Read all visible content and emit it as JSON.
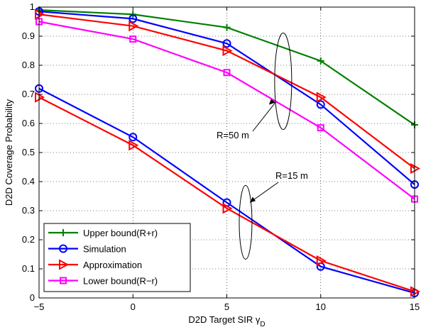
{
  "chart_data": {
    "type": "line",
    "title": "",
    "xlabel_main": "D2D Target SIR γ",
    "xlabel_sub": "D",
    "ylabel": "D2D Coverage Probability",
    "xlim": [
      -5,
      15
    ],
    "ylim": [
      0,
      1
    ],
    "grid": true,
    "legend_position": "bottom-left",
    "x_ticks": [
      "-5",
      "0",
      "5",
      "10",
      "15"
    ],
    "y_ticks": [
      "0",
      "0.1",
      "0.2",
      "0.3",
      "0.4",
      "0.5",
      "0.6",
      "0.7",
      "0.8",
      "0.9",
      "1"
    ],
    "x": [
      -5,
      0,
      5,
      10,
      15
    ],
    "series": [
      {
        "name": "Upper bound(R+r)",
        "color": "#008000",
        "marker": "plus",
        "group": "R=50 m",
        "values": [
          0.99,
          0.975,
          0.93,
          0.815,
          0.595
        ]
      },
      {
        "name": "Simulation",
        "color": "#0000ff",
        "marker": "circle",
        "group": "R=50 m",
        "values": [
          0.985,
          0.96,
          0.875,
          0.665,
          0.39
        ]
      },
      {
        "name": "Approximation",
        "color": "#ff0000",
        "marker": "triangle-right",
        "group": "R=50 m",
        "values": [
          0.975,
          0.935,
          0.85,
          0.69,
          0.445
        ]
      },
      {
        "name": "Lower bound(R−r)",
        "color": "#ff00ff",
        "marker": "square",
        "group": "R=50 m",
        "values": [
          0.95,
          0.89,
          0.775,
          0.585,
          0.34
        ]
      },
      {
        "name": "Simulation",
        "color": "#0000ff",
        "marker": "circle",
        "group": "R=15 m",
        "values": [
          0.72,
          0.553,
          0.328,
          0.108,
          0.017
        ]
      },
      {
        "name": "Approximation",
        "color": "#ff0000",
        "marker": "triangle-right",
        "group": "R=15 m",
        "values": [
          0.69,
          0.525,
          0.308,
          0.128,
          0.022
        ]
      }
    ],
    "annotations": [
      {
        "text": "R=50 m",
        "target_x": 8,
        "target_y": 0.745
      },
      {
        "text": "R=15 m",
        "target_x": 6,
        "target_y": 0.26
      }
    ]
  }
}
